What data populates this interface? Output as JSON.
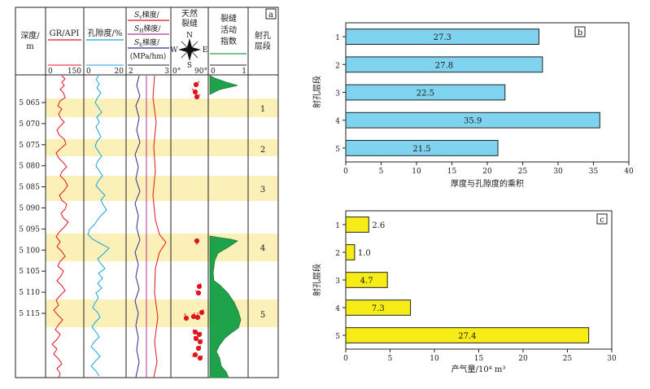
{
  "log_panel": {
    "panel_label": "a",
    "header": {
      "depth_label_line1": "深度/",
      "depth_label_line2": "m",
      "gr_label": "GR/API",
      "gr_min": "0",
      "gr_max": "150",
      "por_label": "孔隙度/%",
      "por_min": "0",
      "por_max": "20",
      "stress_1": "S",
      "stress_1_suffix": "梯度/",
      "stress_2": "S",
      "stress_2_suffix": "梯度/",
      "stress_3": "S",
      "stress_3_suffix": "梯度/",
      "stress_unit": "(MPa/hm)",
      "stress_min": "2",
      "stress_max": "3",
      "frac_label_line1": "天然",
      "frac_label_line2": "裂缝",
      "compass_n": "N",
      "compass_e": "E",
      "compass_s": "S",
      "compass_w": "W",
      "dip_min": "0°",
      "dip_max": "90°",
      "act_label_line1": "裂缝",
      "act_label_line2": "活动",
      "act_label_line3": "指数",
      "act_min": "0",
      "act_max": "1",
      "perf_label_line1": "射孔",
      "perf_label_line2": "层段"
    },
    "depth_ticks": [
      "5 065",
      "5 070",
      "5 075",
      "5 080",
      "5 085",
      "5 090",
      "5 095",
      "5 100",
      "5 105",
      "5 110",
      "5 115"
    ],
    "perforation_labels": [
      "1",
      "2",
      "3",
      "4",
      "5"
    ],
    "colors": {
      "gr": "#e0141c",
      "porosity": "#1aa3dc",
      "stress_1": "#e0141c",
      "stress_2": "#b2349b",
      "stress_3": "#2f2c8f",
      "activity_fill": "#1fa34a",
      "band": "#fbf0b8"
    }
  },
  "chart_data": [
    {
      "type": "bar",
      "orientation": "horizontal",
      "panel_label": "b",
      "categories": [
        "1",
        "2",
        "3",
        "4",
        "5"
      ],
      "values": [
        27.3,
        27.8,
        22.5,
        35.9,
        21.5
      ],
      "value_labels": [
        "27.3",
        "27.8",
        "22.5",
        "35.9",
        "21.5"
      ],
      "xlabel": "厚度与孔隙度的乘积",
      "ylabel": "射孔层段",
      "xlim": [
        0,
        40
      ],
      "xticks": [
        "0",
        "5",
        "10",
        "15",
        "20",
        "25",
        "30",
        "35",
        "40"
      ],
      "bar_color": "#7fd3ef"
    },
    {
      "type": "bar",
      "orientation": "horizontal",
      "panel_label": "c",
      "categories": [
        "1",
        "2",
        "3",
        "4",
        "5"
      ],
      "values": [
        2.6,
        1.0,
        4.7,
        7.3,
        27.4
      ],
      "value_labels": [
        "2.6",
        "1.0",
        "4.7",
        "7.3",
        "27.4"
      ],
      "xlabel": "产气量/10⁴ m³",
      "ylabel": "射孔层段",
      "xlim": [
        0,
        30
      ],
      "xticks": [
        "0",
        "5",
        "10",
        "15",
        "20",
        "25",
        "30"
      ],
      "bar_color": "#f7ec16"
    }
  ]
}
